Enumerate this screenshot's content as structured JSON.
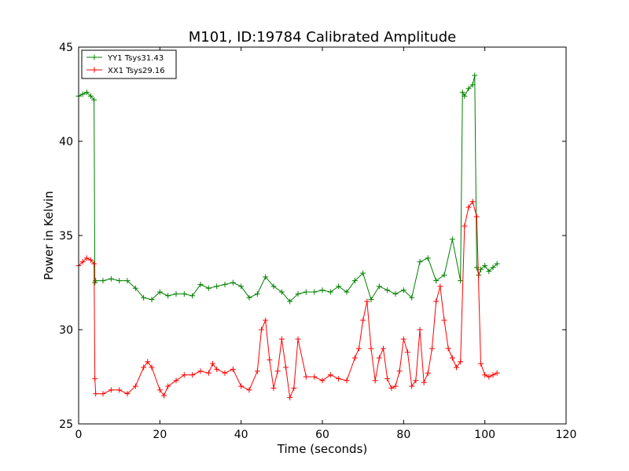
{
  "chart_data": {
    "type": "line",
    "title": "M101, ID:19784 Calibrated Amplitude",
    "xlabel": "Time (seconds)",
    "ylabel": "Power in Kelvin",
    "xlim": [
      0,
      120
    ],
    "ylim": [
      25,
      45
    ],
    "xticks": [
      "0",
      "20",
      "40",
      "60",
      "80",
      "100",
      "120"
    ],
    "yticks": [
      "25",
      "30",
      "35",
      "40",
      "45"
    ],
    "legend_position": "top-left",
    "grid": false,
    "series": [
      {
        "name": "YY1 Tsys31.43",
        "color": "#008000",
        "marker": "+",
        "x": [
          0,
          1,
          2,
          3,
          3.8,
          4.0,
          4.2,
          6,
          8,
          10,
          12,
          14,
          16,
          18,
          20,
          22,
          24,
          26,
          28,
          30,
          32,
          34,
          36,
          38,
          40,
          42,
          44,
          46,
          48,
          50,
          52,
          54,
          56,
          58,
          60,
          62,
          64,
          66,
          68,
          70,
          72,
          74,
          76,
          78,
          80,
          82,
          84,
          86,
          88,
          90,
          92,
          94,
          94.5,
          95,
          96,
          97,
          97.5,
          98,
          98.5,
          99,
          100,
          101,
          102,
          103
        ],
        "values": [
          42.4,
          42.5,
          42.6,
          42.4,
          42.2,
          32.5,
          32.6,
          32.6,
          32.7,
          32.6,
          32.6,
          32.2,
          31.7,
          31.6,
          32.0,
          31.8,
          31.9,
          31.9,
          31.8,
          32.4,
          32.2,
          32.3,
          32.4,
          32.5,
          32.3,
          31.7,
          31.9,
          32.8,
          32.3,
          32.0,
          31.5,
          31.9,
          32.0,
          32.0,
          32.1,
          32.0,
          32.3,
          32.0,
          32.6,
          33.0,
          31.6,
          32.3,
          32.1,
          31.9,
          32.1,
          31.7,
          33.6,
          33.8,
          32.6,
          32.9,
          34.8,
          32.6,
          42.6,
          42.4,
          42.8,
          43.0,
          43.5,
          33.3,
          32.9,
          33.2,
          33.4,
          33.1,
          33.3,
          33.5
        ]
      },
      {
        "name": "XX1 Tsys29.16",
        "color": "#ff0000",
        "marker": "+",
        "x": [
          0,
          1,
          2,
          3,
          3.8,
          4.0,
          4.2,
          6,
          8,
          10,
          12,
          14,
          16,
          17,
          18,
          20,
          21,
          22,
          24,
          26,
          28,
          30,
          32,
          33,
          34,
          36,
          38,
          40,
          42,
          44,
          45,
          46,
          47,
          48,
          49,
          50,
          51,
          52,
          53,
          54,
          56,
          58,
          60,
          62,
          64,
          66,
          68,
          69,
          70,
          71,
          72,
          73,
          74,
          75,
          76,
          77,
          78,
          79,
          80,
          81,
          82,
          83,
          84,
          85,
          86,
          87,
          88,
          89,
          90,
          91,
          92,
          93,
          94,
          95,
          96,
          97,
          98,
          99,
          100,
          101,
          102,
          103
        ],
        "values": [
          33.4,
          33.6,
          33.8,
          33.7,
          33.5,
          27.4,
          26.6,
          26.6,
          26.8,
          26.8,
          26.6,
          27.0,
          28.0,
          28.3,
          28.0,
          26.8,
          26.5,
          27.0,
          27.3,
          27.6,
          27.6,
          27.8,
          27.7,
          28.2,
          27.9,
          27.7,
          27.9,
          27.0,
          26.8,
          27.8,
          30.0,
          30.5,
          28.4,
          26.9,
          27.8,
          29.5,
          28.0,
          26.4,
          26.9,
          29.5,
          27.5,
          27.5,
          27.3,
          27.6,
          27.4,
          27.3,
          28.5,
          29.0,
          30.5,
          31.5,
          29.0,
          27.3,
          28.5,
          29.0,
          27.4,
          26.9,
          27.0,
          27.8,
          29.5,
          28.8,
          27.0,
          27.3,
          30.0,
          27.2,
          27.7,
          29.0,
          31.5,
          32.3,
          30.5,
          29.0,
          28.5,
          28.0,
          28.3,
          35.5,
          36.5,
          36.8,
          36.0,
          28.2,
          27.6,
          27.5,
          27.6,
          27.7
        ]
      }
    ]
  }
}
